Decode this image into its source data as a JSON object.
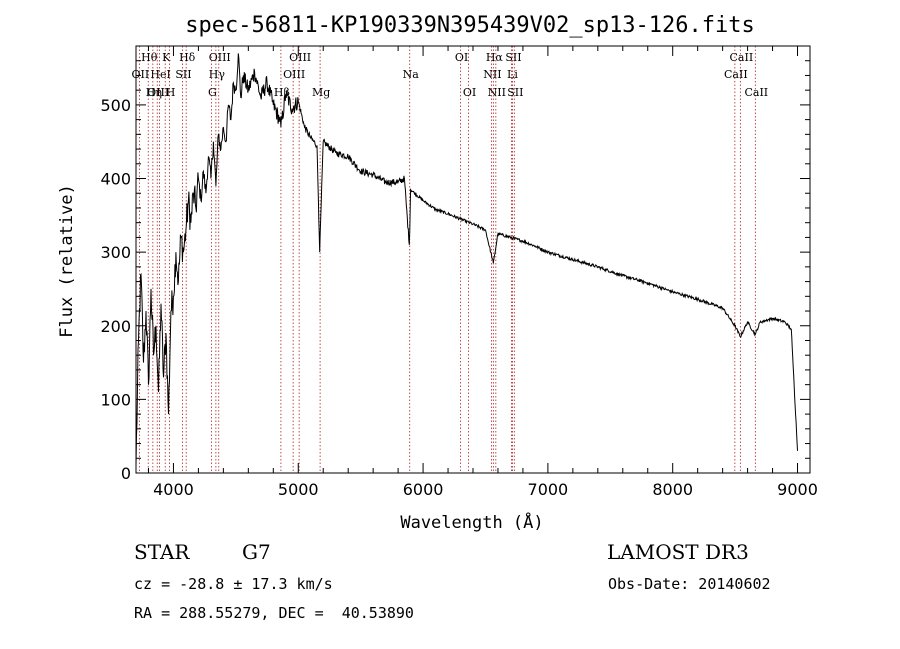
{
  "chart_data": {
    "type": "line",
    "title": "spec-56811-KP190339N395439V02_sp13-126.fits",
    "xlabel": "Wavelength (Å)",
    "ylabel": "Flux (relative)",
    "xlim": [
      3700,
      9100
    ],
    "ylim": [
      0,
      580
    ],
    "x_ticks": [
      4000,
      5000,
      6000,
      7000,
      8000,
      9000
    ],
    "y_ticks": [
      0,
      100,
      200,
      300,
      400,
      500
    ],
    "series": [
      {
        "name": "spectrum",
        "points": [
          [
            3700,
            10
          ],
          [
            3720,
            180
          ],
          [
            3740,
            270
          ],
          [
            3760,
            150
          ],
          [
            3780,
            220
          ],
          [
            3800,
            120
          ],
          [
            3820,
            250
          ],
          [
            3840,
            160
          ],
          [
            3860,
            200
          ],
          [
            3880,
            110
          ],
          [
            3900,
            230
          ],
          [
            3920,
            130
          ],
          [
            3940,
            190
          ],
          [
            3960,
            80
          ],
          [
            3980,
            220
          ],
          [
            4000,
            240
          ],
          [
            4020,
            300
          ],
          [
            4040,
            260
          ],
          [
            4060,
            320
          ],
          [
            4080,
            300
          ],
          [
            4100,
            330
          ],
          [
            4120,
            370
          ],
          [
            4140,
            340
          ],
          [
            4160,
            380
          ],
          [
            4180,
            360
          ],
          [
            4200,
            400
          ],
          [
            4220,
            370
          ],
          [
            4240,
            410
          ],
          [
            4260,
            380
          ],
          [
            4280,
            430
          ],
          [
            4300,
            400
          ],
          [
            4320,
            450
          ],
          [
            4340,
            390
          ],
          [
            4360,
            460
          ],
          [
            4380,
            440
          ],
          [
            4400,
            470
          ],
          [
            4420,
            450
          ],
          [
            4440,
            500
          ],
          [
            4460,
            480
          ],
          [
            4480,
            530
          ],
          [
            4500,
            520
          ],
          [
            4520,
            570
          ],
          [
            4540,
            510
          ],
          [
            4560,
            540
          ],
          [
            4600,
            520
          ],
          [
            4650,
            545
          ],
          [
            4700,
            510
          ],
          [
            4750,
            530
          ],
          [
            4800,
            500
          ],
          [
            4850,
            480
          ],
          [
            4861,
            470
          ],
          [
            4900,
            515
          ],
          [
            4950,
            495
          ],
          [
            5000,
            505
          ],
          [
            5050,
            470
          ],
          [
            5100,
            455
          ],
          [
            5150,
            445
          ],
          [
            5172,
            300
          ],
          [
            5200,
            450
          ],
          [
            5300,
            435
          ],
          [
            5400,
            430
          ],
          [
            5500,
            410
          ],
          [
            5600,
            405
          ],
          [
            5700,
            395
          ],
          [
            5800,
            395
          ],
          [
            5850,
            400
          ],
          [
            5890,
            310
          ],
          [
            5900,
            385
          ],
          [
            6000,
            370
          ],
          [
            6100,
            358
          ],
          [
            6200,
            352
          ],
          [
            6300,
            345
          ],
          [
            6400,
            338
          ],
          [
            6500,
            330
          ],
          [
            6563,
            285
          ],
          [
            6600,
            325
          ],
          [
            6700,
            320
          ],
          [
            6800,
            315
          ],
          [
            6900,
            308
          ],
          [
            7000,
            300
          ],
          [
            7200,
            290
          ],
          [
            7400,
            280
          ],
          [
            7600,
            268
          ],
          [
            7800,
            258
          ],
          [
            8000,
            246
          ],
          [
            8200,
            236
          ],
          [
            8400,
            224
          ],
          [
            8498,
            200
          ],
          [
            8542,
            185
          ],
          [
            8600,
            205
          ],
          [
            8662,
            188
          ],
          [
            8700,
            205
          ],
          [
            8800,
            210
          ],
          [
            8900,
            205
          ],
          [
            8950,
            195
          ],
          [
            9000,
            30
          ]
        ]
      }
    ],
    "line_markers": [
      {
        "name": "Hθ",
        "wavelength": 3798,
        "row": 0
      },
      {
        "name": "OII",
        "wavelength": 3727,
        "row": 1
      },
      {
        "name": "OIII",
        "wavelength": 3870,
        "row": 2
      },
      {
        "name": "K",
        "wavelength": 3934,
        "row": 0
      },
      {
        "name": "HeI",
        "wavelength": 3889,
        "row": 1
      },
      {
        "name": "Hη",
        "wavelength": 3835,
        "row": 2
      },
      {
        "name": "Hδ",
        "wavelength": 4102,
        "row": 0
      },
      {
        "name": "SII",
        "wavelength": 4072,
        "row": 1
      },
      {
        "name": "H",
        "wavelength": 3969,
        "row": 2
      },
      {
        "name": "OIII",
        "wavelength": 4363,
        "row": 0
      },
      {
        "name": "Hγ",
        "wavelength": 4340,
        "row": 1
      },
      {
        "name": "G",
        "wavelength": 4304,
        "row": 2
      },
      {
        "name": "OIII",
        "wavelength": 5007,
        "row": 0
      },
      {
        "name": "OIII",
        "wavelength": 4959,
        "row": 1
      },
      {
        "name": "Hβ",
        "wavelength": 4861,
        "row": 2
      },
      {
        "name": "Mg",
        "wavelength": 5175,
        "row": 2
      },
      {
        "name": "Na",
        "wavelength": 5893,
        "row": 1
      },
      {
        "name": "OI",
        "wavelength": 6300,
        "row": 0
      },
      {
        "name": "OI",
        "wavelength": 6364,
        "row": 2
      },
      {
        "name": "Hα",
        "wavelength": 6563,
        "row": 0
      },
      {
        "name": "SII",
        "wavelength": 6716,
        "row": 0
      },
      {
        "name": "NII",
        "wavelength": 6548,
        "row": 1
      },
      {
        "name": "Li",
        "wavelength": 6708,
        "row": 1
      },
      {
        "name": "NII",
        "wavelength": 6583,
        "row": 2
      },
      {
        "name": "SII",
        "wavelength": 6731,
        "row": 2
      },
      {
        "name": "CaII",
        "wavelength": 8542,
        "row": 0
      },
      {
        "name": "CaII",
        "wavelength": 8498,
        "row": 1
      },
      {
        "name": "CaII",
        "wavelength": 8662,
        "row": 2
      }
    ]
  },
  "info": {
    "object_class": "STAR",
    "subclass": "G7",
    "survey": "LAMOST DR3",
    "cz": "cz = -28.8 ± 17.3 km/s",
    "obs_date": "Obs-Date: 20140602",
    "coords": "RA = 288.55279, DEC =  40.53890"
  },
  "colors": {
    "spectrum": "#000000",
    "marker": "#b22222",
    "axes": "#000000"
  }
}
